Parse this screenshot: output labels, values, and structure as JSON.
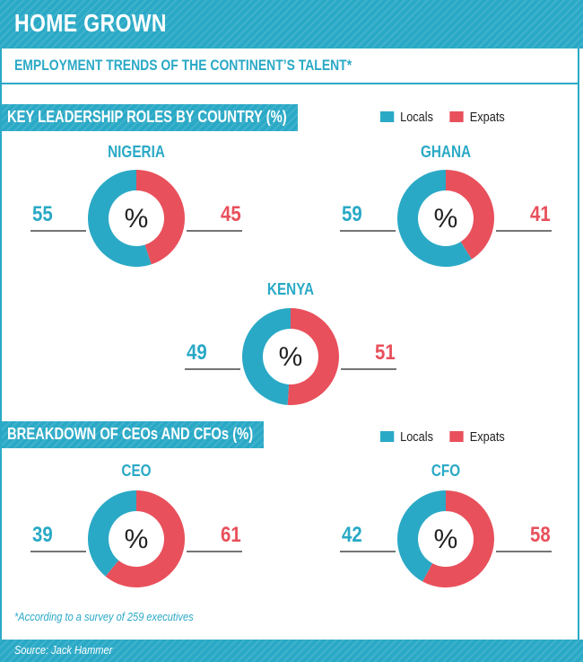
{
  "header": {
    "title": "HOME GROWN"
  },
  "subtitle": "EMPLOYMENT TRENDS OF THE CONTINENT’S TALENT*",
  "colors": {
    "locals": "#2aa9c6",
    "expats": "#e8505b"
  },
  "chart_data": [
    {
      "type": "pie",
      "section": "KEY LEADERSHIP ROLES BY COUNTRY (%)",
      "legend": [
        "Locals",
        "Expats"
      ],
      "charts": [
        {
          "title": "NIGERIA",
          "center_label": "%",
          "locals": 55,
          "expats": 45
        },
        {
          "title": "GHANA",
          "center_label": "%",
          "locals": 59,
          "expats": 41
        },
        {
          "title": "KENYA",
          "center_label": "%",
          "locals": 49,
          "expats": 51
        }
      ]
    },
    {
      "type": "pie",
      "section": "BREAKDOWN OF CEOs AND CFOs (%)",
      "legend": [
        "Locals",
        "Expats"
      ],
      "charts": [
        {
          "title": "CEO",
          "center_label": "%",
          "locals": 39,
          "expats": 61
        },
        {
          "title": "CFO",
          "center_label": "%",
          "locals": 42,
          "expats": 58
        }
      ]
    }
  ],
  "footnote": "*According to a survey of 259 executives",
  "source": "Source: Jack Hammer"
}
